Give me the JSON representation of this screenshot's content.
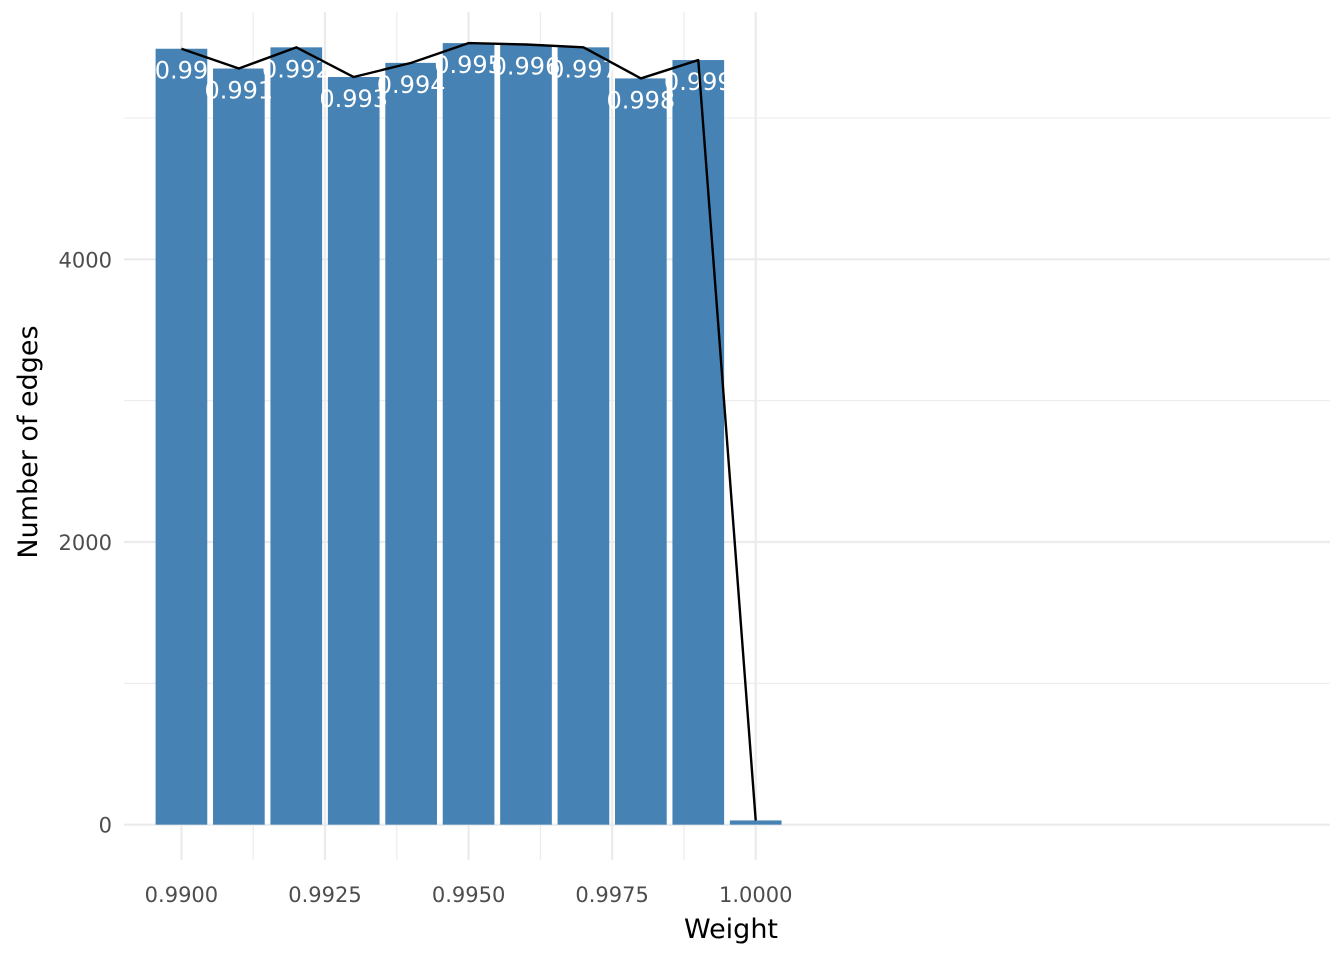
{
  "chart_data": {
    "type": "bar",
    "title": "",
    "xlabel": "Weight",
    "ylabel": "Number of edges",
    "x": [
      0.99,
      0.991,
      0.992,
      0.993,
      0.994,
      0.995,
      0.996,
      0.997,
      0.998,
      0.999,
      1.0
    ],
    "values": [
      5490,
      5350,
      5500,
      5290,
      5390,
      5530,
      5520,
      5500,
      5280,
      5410,
      30
    ],
    "bar_labels": [
      "0.99",
      "0.991",
      "0.992",
      "0.993",
      "0.994",
      "0.995",
      "0.996",
      "0.997",
      "0.998",
      "0.999",
      ""
    ],
    "overlay_line": {
      "type": "line",
      "x": [
        0.99,
        0.991,
        0.992,
        0.993,
        0.994,
        0.995,
        0.996,
        0.997,
        0.998,
        0.999,
        1.0
      ],
      "values": [
        5490,
        5350,
        5500,
        5290,
        5390,
        5530,
        5520,
        5500,
        5280,
        5410,
        30
      ]
    },
    "xlim": [
      0.989,
      1.01
    ],
    "ylim": [
      -250,
      5750
    ],
    "x_ticks": [
      0.99,
      0.9925,
      0.995,
      0.9975,
      1.0
    ],
    "x_tick_labels": [
      "0.9900",
      "0.9925",
      "0.9950",
      "0.9975",
      "1.0000"
    ],
    "y_ticks": [
      0,
      2000,
      4000
    ],
    "y_tick_labels": [
      "0",
      "2000",
      "4000"
    ],
    "grid": true,
    "colors": {
      "bar": "#4682b4",
      "line": "#000000",
      "grid": "#ebebeb",
      "label": "#ffffff"
    }
  }
}
